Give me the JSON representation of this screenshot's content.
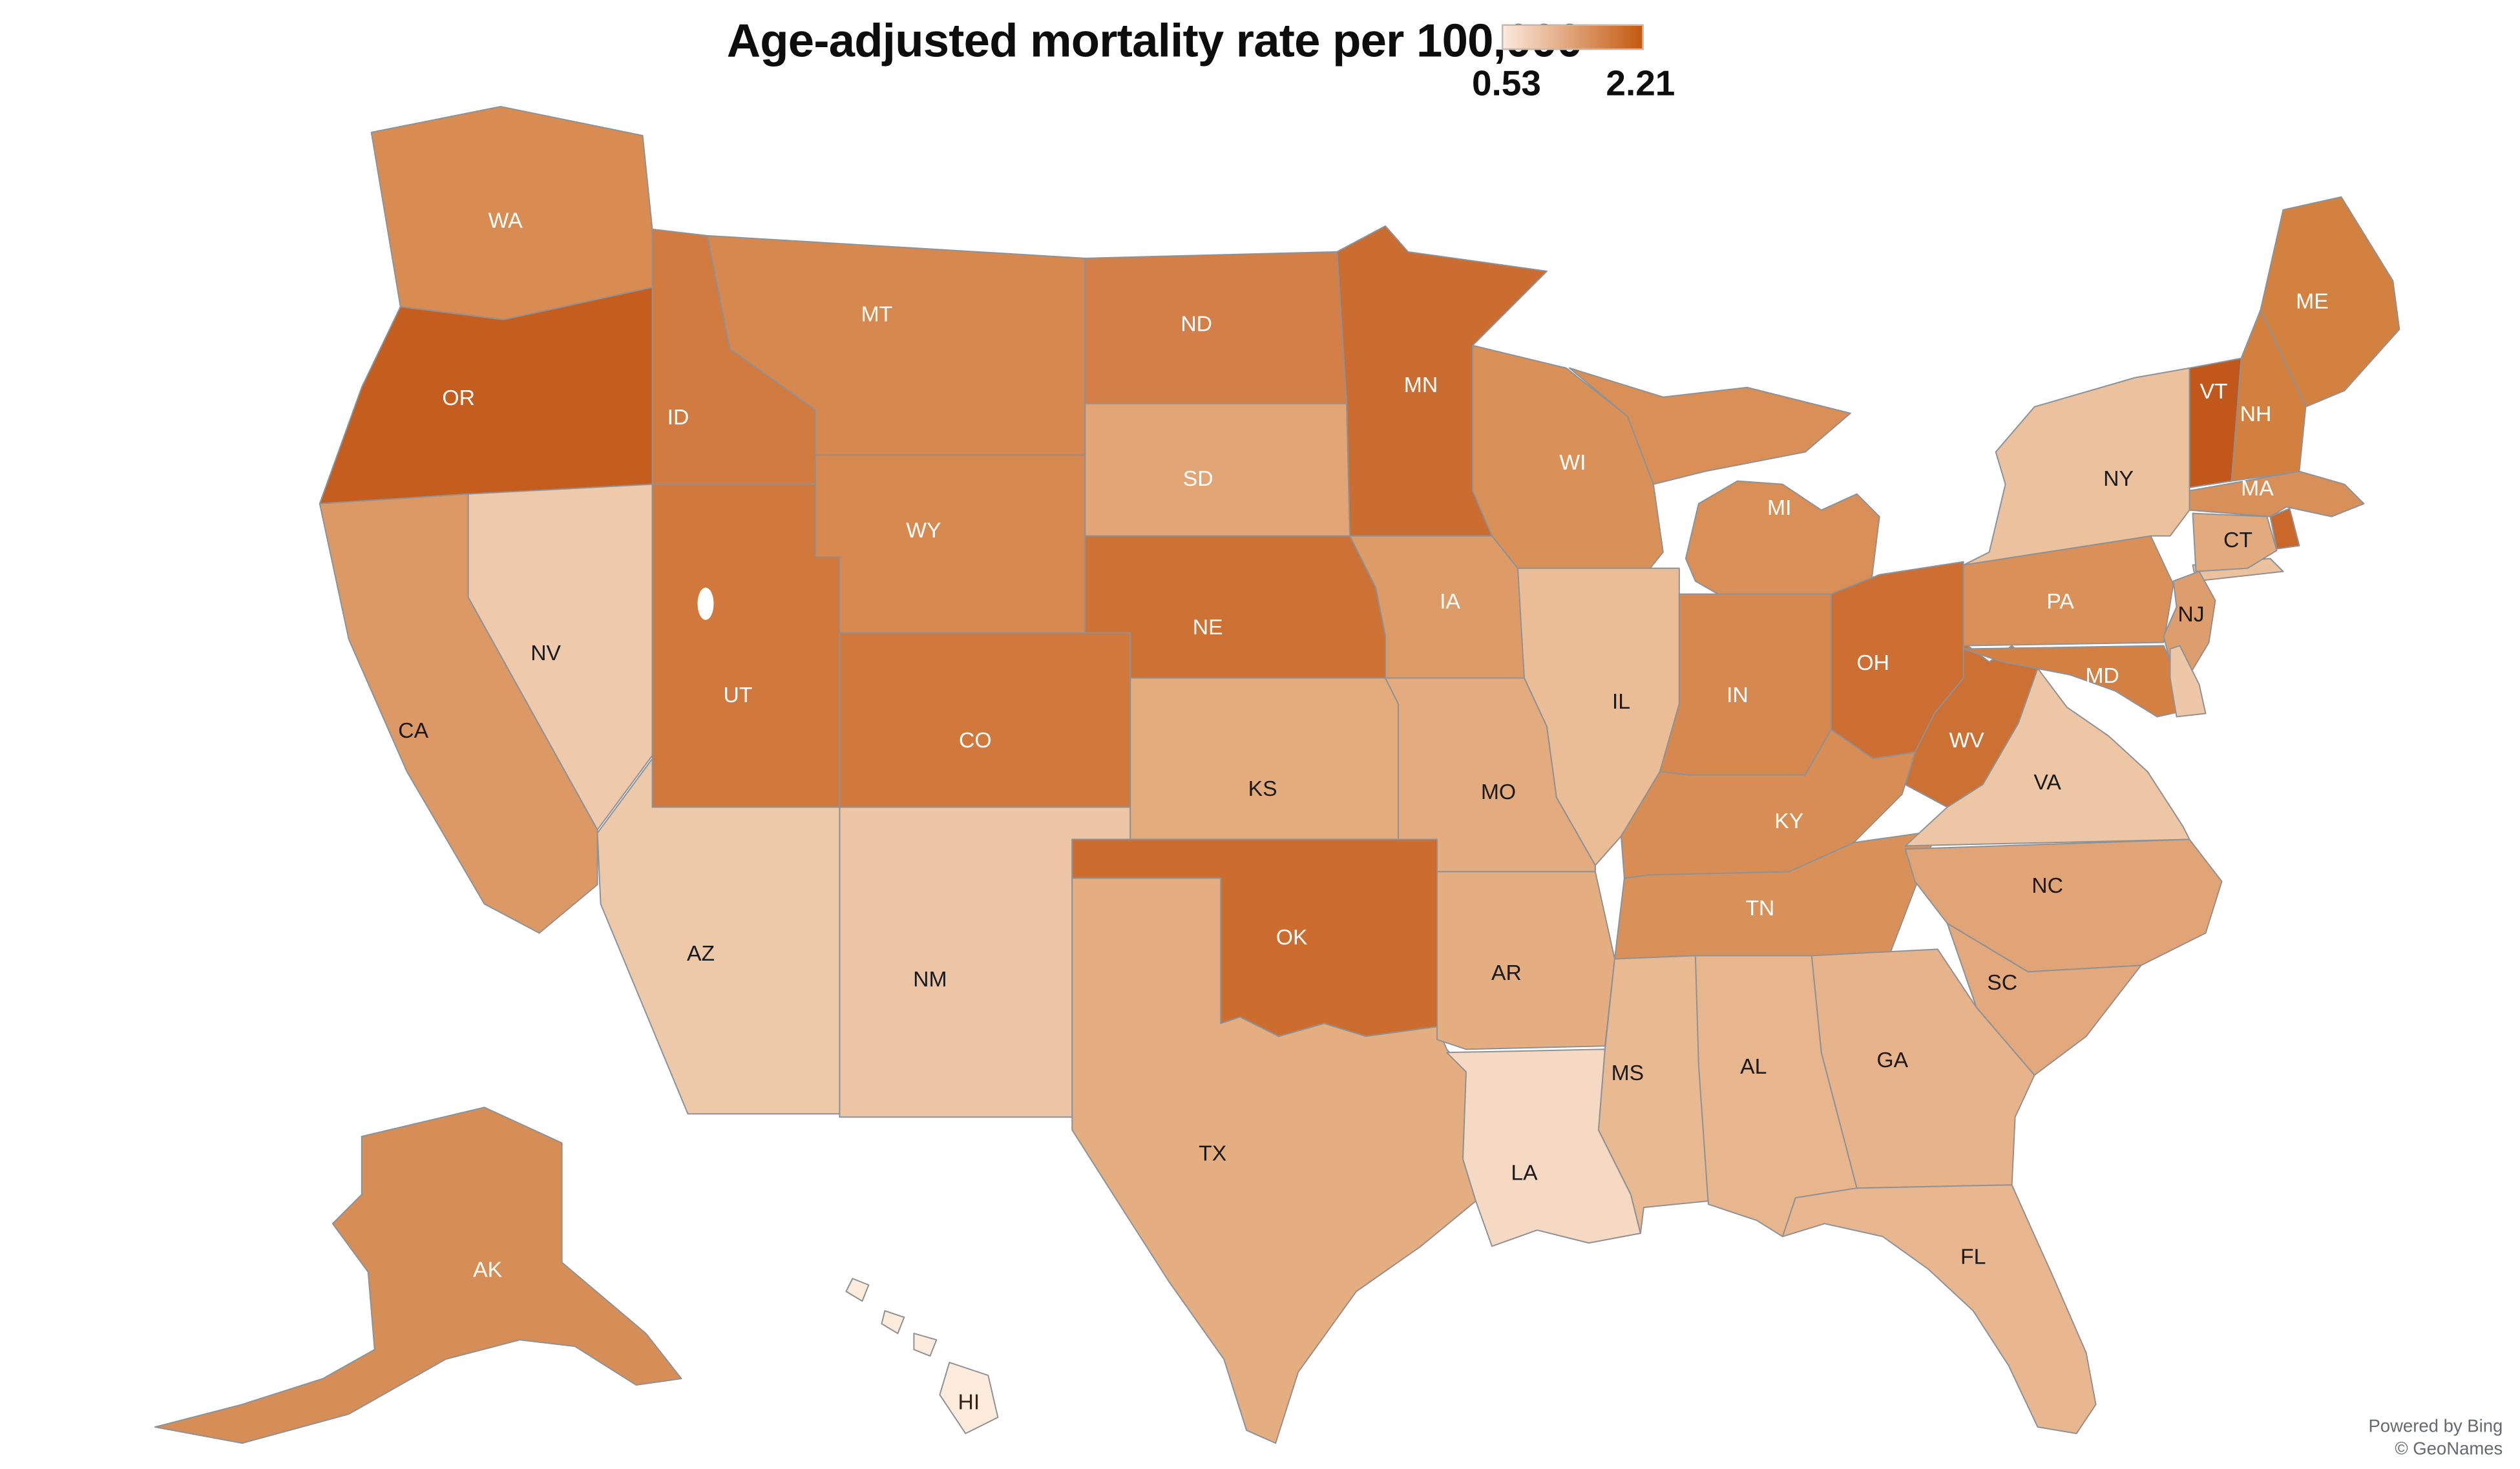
{
  "title": "Age-adjusted mortality rate per 100,000",
  "legend": {
    "min": "0.53",
    "max": "2.21",
    "gradient_start": "#fbe9dc",
    "gradient_end": "#c4590f"
  },
  "attribution": {
    "line1": "Powered by Bing",
    "line2": "© GeoNames"
  },
  "chart_data": {
    "type": "choropleth",
    "title": "Age-adjusted mortality rate per 100,000",
    "legend_min": 0.53,
    "legend_max": 2.21,
    "colorscale": [
      "#fbe9dc",
      "#c4590f"
    ],
    "region": "United States",
    "states": [
      {
        "abbr": "WA",
        "label": "WA",
        "color": "#d98c52",
        "label_color": "#ffffff"
      },
      {
        "abbr": "OR",
        "label": "OR",
        "color": "#c55d1e",
        "label_color": "#ffffff"
      },
      {
        "abbr": "CA",
        "label": "CA",
        "color": "#dc9965",
        "label_color": "#1a1a1a"
      },
      {
        "abbr": "NV",
        "label": "NV",
        "color": "#eec9ab",
        "label_color": "#1a1a1a"
      },
      {
        "abbr": "ID",
        "label": "ID",
        "color": "#d17b40",
        "label_color": "#ffffff"
      },
      {
        "abbr": "MT",
        "label": "MT",
        "color": "#d7884e",
        "label_color": "#ffffff"
      },
      {
        "abbr": "WY",
        "label": "WY",
        "color": "#d7894f",
        "label_color": "#ffffff"
      },
      {
        "abbr": "UT",
        "label": "UT",
        "color": "#d1783c",
        "label_color": "#ffffff"
      },
      {
        "abbr": "CO",
        "label": "CO",
        "color": "#d1793d",
        "label_color": "#ffffff"
      },
      {
        "abbr": "AZ",
        "label": "AZ",
        "color": "#edc8a9",
        "label_color": "#1a1a1a"
      },
      {
        "abbr": "NM",
        "label": "NM",
        "color": "#edc5a4",
        "label_color": "#1a1a1a"
      },
      {
        "abbr": "ND",
        "label": "ND",
        "color": "#d37f47",
        "label_color": "#ffffff"
      },
      {
        "abbr": "SD",
        "label": "SD",
        "color": "#e2a575",
        "label_color": "#ffffff"
      },
      {
        "abbr": "NE",
        "label": "NE",
        "color": "#ce7134",
        "label_color": "#ffffff"
      },
      {
        "abbr": "KS",
        "label": "KS",
        "color": "#e4ab7d",
        "label_color": "#1a1a1a"
      },
      {
        "abbr": "OK",
        "label": "OK",
        "color": "#cc6d2f",
        "label_color": "#ffffff"
      },
      {
        "abbr": "TX",
        "label": "TX",
        "color": "#e5ae80",
        "label_color": "#1a1a1a"
      },
      {
        "abbr": "MN",
        "label": "MN",
        "color": "#cb6c31",
        "label_color": "#ffffff"
      },
      {
        "abbr": "IA",
        "label": "IA",
        "color": "#dd9b68",
        "label_color": "#ffffff"
      },
      {
        "abbr": "MO",
        "label": "MO",
        "color": "#e4ac7e",
        "label_color": "#1a1a1a"
      },
      {
        "abbr": "AR",
        "label": "AR",
        "color": "#e5ae81",
        "label_color": "#1a1a1a"
      },
      {
        "abbr": "LA",
        "label": "LA",
        "color": "#f5d9c2",
        "label_color": "#1a1a1a"
      },
      {
        "abbr": "WI",
        "label": "WI",
        "color": "#d99157",
        "label_color": "#ffffff"
      },
      {
        "abbr": "IL",
        "label": "IL",
        "color": "#eabd96",
        "label_color": "#1a1a1a"
      },
      {
        "abbr": "MI",
        "label": "MI",
        "color": "#d98f55",
        "label_color": "#ffffff"
      },
      {
        "abbr": "IN",
        "label": "IN",
        "color": "#d6884e",
        "label_color": "#ffffff"
      },
      {
        "abbr": "OH",
        "label": "OH",
        "color": "#cd6f33",
        "label_color": "#ffffff"
      },
      {
        "abbr": "KY",
        "label": "KY",
        "color": "#d78d54",
        "label_color": "#ffffff"
      },
      {
        "abbr": "TN",
        "label": "TN",
        "color": "#da9159",
        "label_color": "#ffffff"
      },
      {
        "abbr": "MS",
        "label": "MS",
        "color": "#e9b991",
        "label_color": "#1a1a1a"
      },
      {
        "abbr": "AL",
        "label": "AL",
        "color": "#e8b68d",
        "label_color": "#1a1a1a"
      },
      {
        "abbr": "GA",
        "label": "GA",
        "color": "#e7b38b",
        "label_color": "#1a1a1a"
      },
      {
        "abbr": "FL",
        "label": "FL",
        "color": "#e8b790",
        "label_color": "#1a1a1a"
      },
      {
        "abbr": "WV",
        "label": "WV",
        "color": "#cd7034",
        "label_color": "#ffffff"
      },
      {
        "abbr": "VA",
        "label": "VA",
        "color": "#edc6a6",
        "label_color": "#1a1a1a"
      },
      {
        "abbr": "NC",
        "label": "NC",
        "color": "#e1a476",
        "label_color": "#1a1a1a"
      },
      {
        "abbr": "SC",
        "label": "SC",
        "color": "#e3a97d",
        "label_color": "#1a1a1a"
      },
      {
        "abbr": "PA",
        "label": "PA",
        "color": "#da9057",
        "label_color": "#ffffff"
      },
      {
        "abbr": "NY",
        "label": "NY",
        "color": "#ecc29e",
        "label_color": "#1a1a1a"
      },
      {
        "abbr": "ME",
        "label": "ME",
        "color": "#d3813f",
        "label_color": "#ffffff"
      },
      {
        "abbr": "NH",
        "label": "NH",
        "color": "#d3803f",
        "label_color": "#ffffff"
      },
      {
        "abbr": "VT",
        "label": "VT",
        "color": "#c1571a",
        "label_color": "#ffffff"
      },
      {
        "abbr": "MA",
        "label": "MA",
        "color": "#d98f58",
        "label_color": "#ffffff"
      },
      {
        "abbr": "RI",
        "label": "",
        "color": "#ca682b",
        "label_color": "#ffffff"
      },
      {
        "abbr": "CT",
        "label": "CT",
        "color": "#e3aa7e",
        "label_color": "#1a1a1a"
      },
      {
        "abbr": "NJ",
        "label": "NJ",
        "color": "#de9d6c",
        "label_color": "#1a1a1a"
      },
      {
        "abbr": "MD",
        "label": "MD",
        "color": "#d48043",
        "label_color": "#ffffff"
      },
      {
        "abbr": "DE",
        "label": "",
        "color": "#eec7a8",
        "label_color": "#1a1a1a"
      },
      {
        "abbr": "AK",
        "label": "AK",
        "color": "#d78d56",
        "label_color": "#ffffff"
      },
      {
        "abbr": "HI",
        "label": "HI",
        "color": "#fdebdc",
        "label_color": "#332318"
      }
    ]
  }
}
